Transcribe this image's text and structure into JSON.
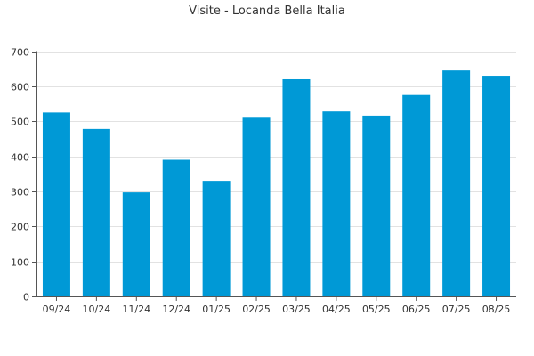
{
  "chart_data": {
    "type": "bar",
    "title": "Visite - Locanda Bella Italia",
    "xlabel": "",
    "ylabel": "",
    "categories": [
      "09/24",
      "10/24",
      "11/24",
      "12/24",
      "01/25",
      "02/25",
      "03/25",
      "04/25",
      "05/25",
      "06/25",
      "07/25",
      "08/25"
    ],
    "values": [
      525,
      478,
      297,
      390,
      330,
      510,
      620,
      528,
      516,
      575,
      645,
      630
    ],
    "ylim": [
      0,
      700
    ],
    "yticks": [
      0,
      100,
      200,
      300,
      400,
      500,
      600,
      700
    ],
    "grid": true,
    "legend": "none",
    "bar_color": "#0099d6"
  }
}
